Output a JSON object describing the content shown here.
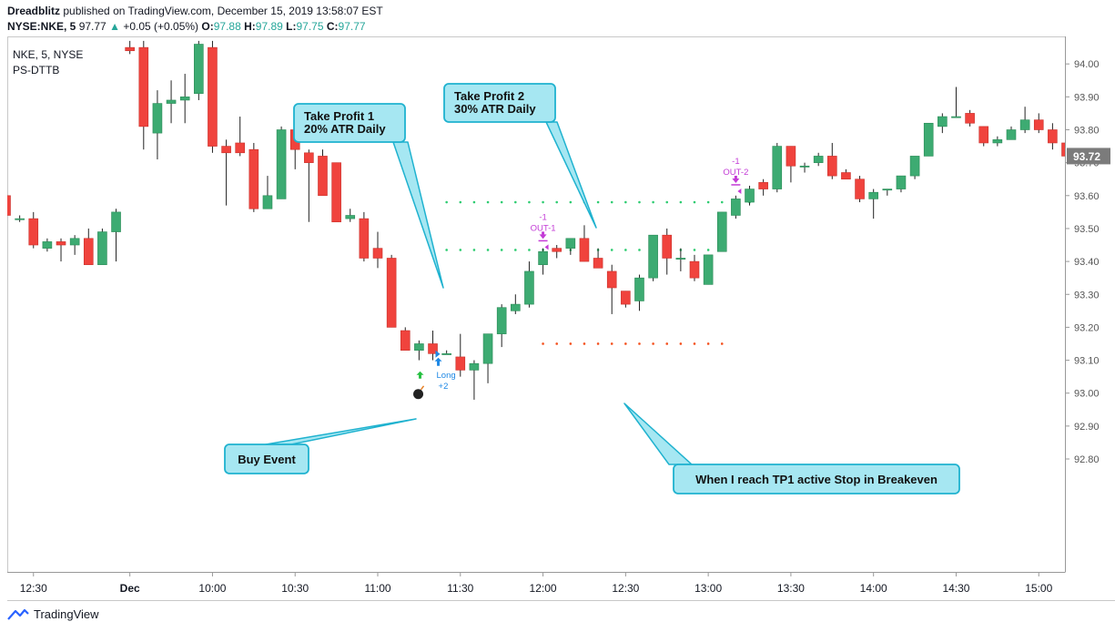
{
  "header": {
    "author": "Dreadblitz",
    "published_text": "published on TradingView.com, December 15, 2019 13:58:07 EST",
    "symbol_line": "NYSE:NKE, 5",
    "last": "97.77",
    "change": "+0.05 (+0.05%)",
    "o_label": "O:",
    "o_value": "97.88",
    "h_label": "H:",
    "h_value": "97.89",
    "l_label": "L:",
    "l_value": "97.75",
    "c_label": "C:",
    "c_value": "97.77"
  },
  "legend": {
    "symbol": "NKE, 5, NYSE",
    "indicator": "PS-DTTB"
  },
  "footer": {
    "brand": "TradingView"
  },
  "colors": {
    "up": "#26a69a",
    "down": "#ef5350",
    "up_fill": "#3dab72",
    "down_fill": "#f0433d",
    "callout": "#a6e7f2",
    "callout_border": "#1fb2cf",
    "tp_dots": "#2ecc71",
    "stop_dots": "#f4511e",
    "exit": "#c33bd6"
  },
  "chart_data": {
    "type": "candlestick",
    "y_axis": {
      "ticks": [
        "94.00",
        "93.90",
        "93.80",
        "93.70",
        "93.60",
        "93.50",
        "93.40",
        "93.30",
        "93.20",
        "93.10",
        "93.00",
        "92.90",
        "92.80"
      ],
      "range": [
        92.73,
        94.07
      ],
      "current_price": "93.72"
    },
    "x_axis": {
      "labels": [
        "12:30",
        "Dec",
        "10:00",
        "10:30",
        "11:00",
        "11:30",
        "12:00",
        "12:30",
        "13:00",
        "13:30",
        "14:00",
        "14:30",
        "15:00"
      ],
      "label_bar_index": [
        2,
        9,
        15,
        21,
        27,
        33,
        39,
        45,
        51,
        57,
        63,
        69,
        75
      ]
    },
    "candles": [
      {
        "o": 93.6,
        "h": 93.62,
        "l": 93.52,
        "c": 93.54
      },
      {
        "o": 93.53,
        "h": 93.54,
        "l": 93.52,
        "c": 93.53
      },
      {
        "o": 93.53,
        "h": 93.55,
        "l": 93.44,
        "c": 93.45
      },
      {
        "o": 93.44,
        "h": 93.47,
        "l": 93.43,
        "c": 93.46
      },
      {
        "o": 93.46,
        "h": 93.47,
        "l": 93.4,
        "c": 93.45
      },
      {
        "o": 93.45,
        "h": 93.48,
        "l": 93.42,
        "c": 93.47
      },
      {
        "o": 93.47,
        "h": 93.5,
        "l": 93.39,
        "c": 93.39
      },
      {
        "o": 93.39,
        "h": 93.5,
        "l": 93.39,
        "c": 93.49
      },
      {
        "o": 93.49,
        "h": 93.56,
        "l": 93.4,
        "c": 93.55
      },
      {
        "o": 94.05,
        "h": 94.07,
        "l": 94.03,
        "c": 94.04
      },
      {
        "o": 94.05,
        "h": 94.07,
        "l": 93.74,
        "c": 93.81
      },
      {
        "o": 93.79,
        "h": 93.92,
        "l": 93.71,
        "c": 93.88
      },
      {
        "o": 93.88,
        "h": 93.95,
        "l": 93.82,
        "c": 93.89
      },
      {
        "o": 93.89,
        "h": 93.97,
        "l": 93.82,
        "c": 93.9
      },
      {
        "o": 93.91,
        "h": 94.07,
        "l": 93.89,
        "c": 94.06
      },
      {
        "o": 94.05,
        "h": 94.07,
        "l": 93.73,
        "c": 93.75
      },
      {
        "o": 93.75,
        "h": 93.77,
        "l": 93.57,
        "c": 93.73
      },
      {
        "o": 93.76,
        "h": 93.84,
        "l": 93.72,
        "c": 93.73
      },
      {
        "o": 93.74,
        "h": 93.76,
        "l": 93.55,
        "c": 93.56
      },
      {
        "o": 93.56,
        "h": 93.66,
        "l": 93.56,
        "c": 93.6
      },
      {
        "o": 93.59,
        "h": 93.81,
        "l": 93.59,
        "c": 93.8
      },
      {
        "o": 93.8,
        "h": 93.8,
        "l": 93.68,
        "c": 93.74
      },
      {
        "o": 93.73,
        "h": 93.74,
        "l": 93.52,
        "c": 93.7
      },
      {
        "o": 93.72,
        "h": 93.74,
        "l": 93.6,
        "c": 93.6
      },
      {
        "o": 93.7,
        "h": 93.7,
        "l": 93.52,
        "c": 93.52
      },
      {
        "o": 93.53,
        "h": 93.56,
        "l": 93.52,
        "c": 93.54
      },
      {
        "o": 93.53,
        "h": 93.55,
        "l": 93.4,
        "c": 93.41
      },
      {
        "o": 93.44,
        "h": 93.49,
        "l": 93.38,
        "c": 93.41
      },
      {
        "o": 93.41,
        "h": 93.42,
        "l": 93.2,
        "c": 93.2
      },
      {
        "o": 93.19,
        "h": 93.2,
        "l": 93.13,
        "c": 93.13
      },
      {
        "o": 93.13,
        "h": 93.16,
        "l": 93.1,
        "c": 93.15
      },
      {
        "o": 93.15,
        "h": 93.19,
        "l": 93.1,
        "c": 93.12
      },
      {
        "o": 93.12,
        "h": 93.13,
        "l": 93.12,
        "c": 93.12
      },
      {
        "o": 93.11,
        "h": 93.18,
        "l": 93.05,
        "c": 93.07
      },
      {
        "o": 93.07,
        "h": 93.1,
        "l": 92.98,
        "c": 93.09
      },
      {
        "o": 93.09,
        "h": 93.18,
        "l": 93.03,
        "c": 93.18
      },
      {
        "o": 93.18,
        "h": 93.27,
        "l": 93.14,
        "c": 93.26
      },
      {
        "o": 93.25,
        "h": 93.3,
        "l": 93.24,
        "c": 93.27
      },
      {
        "o": 93.27,
        "h": 93.4,
        "l": 93.26,
        "c": 93.37
      },
      {
        "o": 93.39,
        "h": 93.44,
        "l": 93.36,
        "c": 93.43
      },
      {
        "o": 93.44,
        "h": 93.45,
        "l": 93.41,
        "c": 93.43
      },
      {
        "o": 93.44,
        "h": 93.47,
        "l": 93.42,
        "c": 93.47
      },
      {
        "o": 93.47,
        "h": 93.51,
        "l": 93.4,
        "c": 93.4
      },
      {
        "o": 93.41,
        "h": 93.44,
        "l": 93.38,
        "c": 93.38
      },
      {
        "o": 93.37,
        "h": 93.39,
        "l": 93.24,
        "c": 93.32
      },
      {
        "o": 93.31,
        "h": 93.31,
        "l": 93.26,
        "c": 93.27
      },
      {
        "o": 93.28,
        "h": 93.36,
        "l": 93.25,
        "c": 93.35
      },
      {
        "o": 93.35,
        "h": 93.48,
        "l": 93.34,
        "c": 93.48
      },
      {
        "o": 93.48,
        "h": 93.5,
        "l": 93.36,
        "c": 93.41
      },
      {
        "o": 93.41,
        "h": 93.44,
        "l": 93.37,
        "c": 93.41
      },
      {
        "o": 93.4,
        "h": 93.42,
        "l": 93.34,
        "c": 93.35
      },
      {
        "o": 93.33,
        "h": 93.42,
        "l": 93.33,
        "c": 93.42
      },
      {
        "o": 93.43,
        "h": 93.55,
        "l": 93.43,
        "c": 93.55
      },
      {
        "o": 93.54,
        "h": 93.6,
        "l": 93.53,
        "c": 93.59
      },
      {
        "o": 93.58,
        "h": 93.63,
        "l": 93.57,
        "c": 93.62
      },
      {
        "o": 93.64,
        "h": 93.65,
        "l": 93.6,
        "c": 93.62
      },
      {
        "o": 93.62,
        "h": 93.76,
        "l": 93.61,
        "c": 93.75
      },
      {
        "o": 93.75,
        "h": 93.75,
        "l": 93.64,
        "c": 93.69
      },
      {
        "o": 93.69,
        "h": 93.7,
        "l": 93.67,
        "c": 93.69
      },
      {
        "o": 93.7,
        "h": 93.73,
        "l": 93.69,
        "c": 93.72
      },
      {
        "o": 93.72,
        "h": 93.76,
        "l": 93.65,
        "c": 93.66
      },
      {
        "o": 93.67,
        "h": 93.68,
        "l": 93.65,
        "c": 93.65
      },
      {
        "o": 93.65,
        "h": 93.66,
        "l": 93.58,
        "c": 93.59
      },
      {
        "o": 93.59,
        "h": 93.62,
        "l": 93.53,
        "c": 93.61
      },
      {
        "o": 93.62,
        "h": 93.62,
        "l": 93.6,
        "c": 93.62
      },
      {
        "o": 93.62,
        "h": 93.66,
        "l": 93.61,
        "c": 93.66
      },
      {
        "o": 93.66,
        "h": 93.72,
        "l": 93.65,
        "c": 93.72
      },
      {
        "o": 93.72,
        "h": 93.82,
        "l": 93.72,
        "c": 93.82
      },
      {
        "o": 93.81,
        "h": 93.85,
        "l": 93.79,
        "c": 93.84
      },
      {
        "o": 93.84,
        "h": 93.93,
        "l": 93.84,
        "c": 93.84
      },
      {
        "o": 93.85,
        "h": 93.86,
        "l": 93.81,
        "c": 93.82
      },
      {
        "o": 93.81,
        "h": 93.81,
        "l": 93.75,
        "c": 93.76
      },
      {
        "o": 93.76,
        "h": 93.78,
        "l": 93.75,
        "c": 93.77
      },
      {
        "o": 93.77,
        "h": 93.81,
        "l": 93.77,
        "c": 93.8
      },
      {
        "o": 93.8,
        "h": 93.87,
        "l": 93.79,
        "c": 93.83
      },
      {
        "o": 93.83,
        "h": 93.85,
        "l": 93.79,
        "c": 93.8
      },
      {
        "o": 93.8,
        "h": 93.82,
        "l": 93.74,
        "c": 93.76
      },
      {
        "o": 93.76,
        "h": 93.78,
        "l": 93.72,
        "c": 93.72
      }
    ],
    "levels": [
      {
        "name": "Take Profit 2",
        "price": 93.58,
        "from_bar": 32,
        "to_bar": 54
      },
      {
        "name": "Take Profit 1",
        "price": 93.435,
        "from_bar": 31,
        "to_bar": 52
      },
      {
        "name": "Stop (Breakeven)",
        "price": 93.15,
        "from_bar": 39,
        "to_bar": 52
      }
    ],
    "signals": [
      {
        "type": "entry",
        "bar": 31,
        "price": 93.08,
        "text": "Long",
        "qty": "+2"
      },
      {
        "type": "exit",
        "bar": 39,
        "price": 93.46,
        "label": "OUT-1",
        "qty": "-1"
      },
      {
        "type": "exit",
        "bar": 53,
        "price": 93.63,
        "label": "OUT-2",
        "qty": "-1"
      }
    ],
    "annotations": [
      {
        "text": "Take Profit 1\n20% ATR Daily",
        "anchor_bar": 32,
        "anchor_price": 93.435
      },
      {
        "text": "Take Profit 2\n30% ATR Daily",
        "anchor_bar": 43,
        "anchor_price": 93.58
      },
      {
        "text": "Buy Event",
        "anchor_bar": 29,
        "anchor_price": 93.1
      },
      {
        "text": "When I reach TP1 active Stop in Breakeven",
        "anchor_bar": 45,
        "anchor_price": 93.15
      }
    ]
  }
}
